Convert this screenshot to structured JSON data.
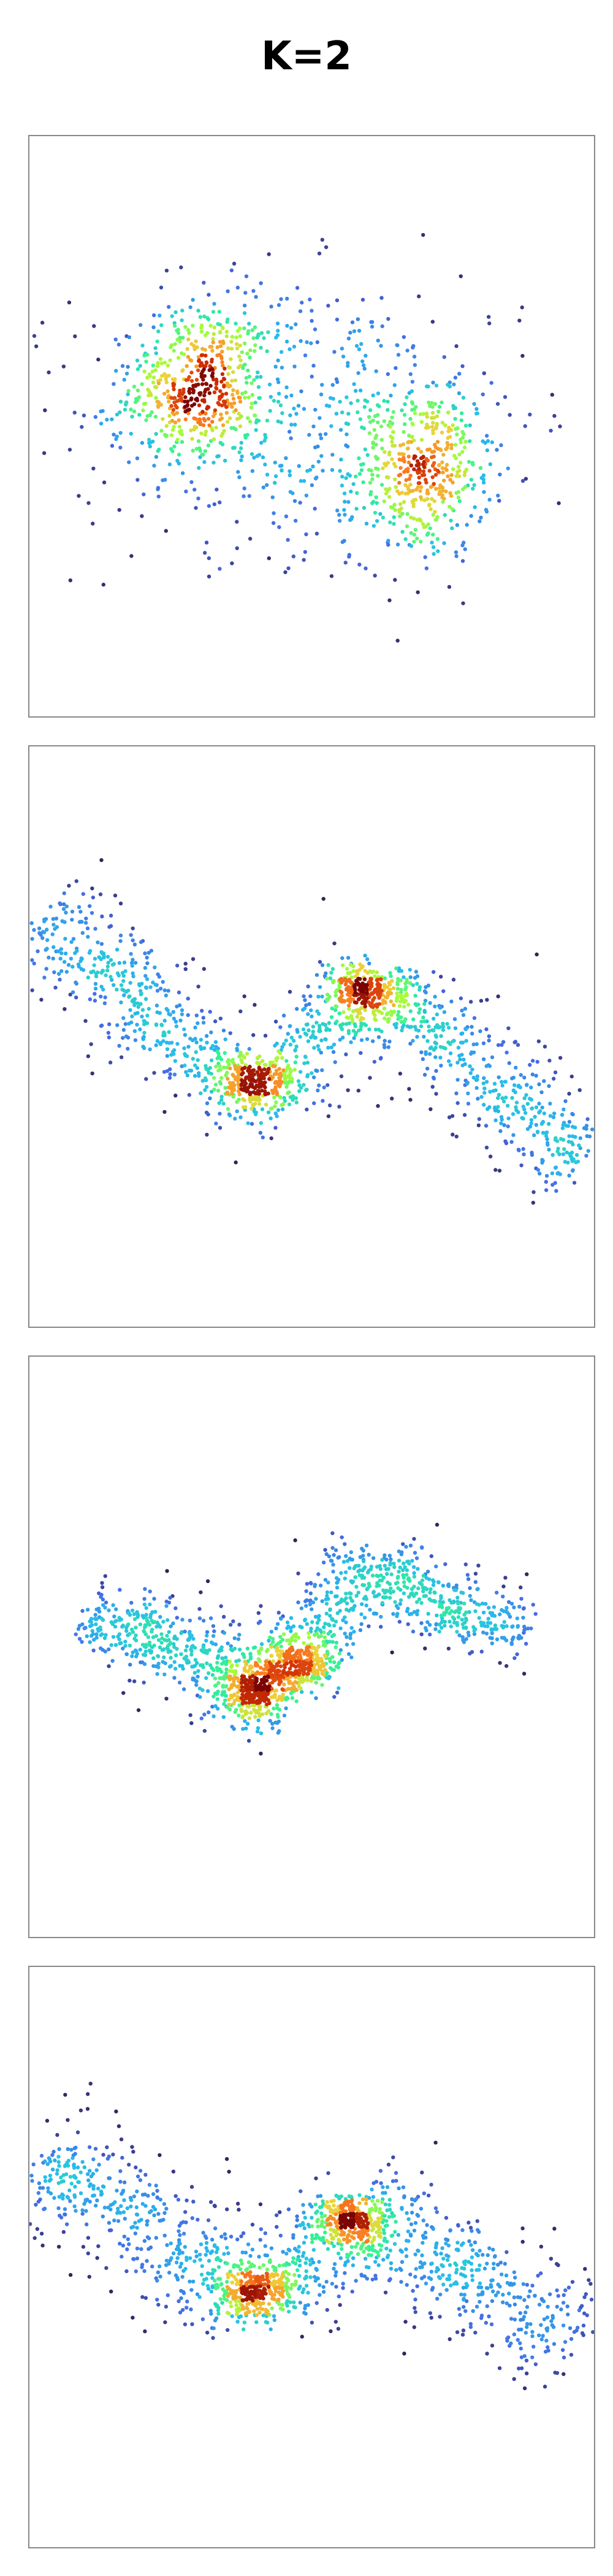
{
  "page": {
    "title": "K=2"
  },
  "colors": {
    "frame": "#888888",
    "colormap": "turbo",
    "background": "#ffffff"
  },
  "chart_data": [
    {
      "type": "scatter",
      "title": "",
      "density_colored": true,
      "xlim": [
        0,
        1
      ],
      "ylim": [
        0,
        1
      ],
      "grid": false,
      "clusters": [
        {
          "center": [
            0.3,
            0.57
          ],
          "spread": [
            0.06,
            0.07
          ],
          "tilt": 0.3,
          "weight": 0.34
        },
        {
          "center": [
            0.7,
            0.42
          ],
          "spread": [
            0.06,
            0.075
          ],
          "tilt": 0.2,
          "weight": 0.3
        },
        {
          "center": [
            0.48,
            0.52
          ],
          "spread": [
            0.2,
            0.12
          ],
          "tilt": 0.0,
          "weight": 0.36
        }
      ]
    },
    {
      "type": "scatter",
      "title": "",
      "density_colored": true,
      "xlim": [
        0,
        1
      ],
      "ylim": [
        0,
        1
      ],
      "grid": false,
      "curve": [
        [
          0.02,
          0.7
        ],
        [
          0.18,
          0.58
        ],
        [
          0.32,
          0.43
        ],
        [
          0.45,
          0.41
        ],
        [
          0.55,
          0.55
        ],
        [
          0.62,
          0.58
        ],
        [
          0.72,
          0.5
        ],
        [
          0.85,
          0.4
        ],
        [
          0.98,
          0.28
        ]
      ],
      "hotspots": [
        [
          0.4,
          0.42
        ],
        [
          0.6,
          0.58
        ]
      ],
      "width": 0.045
    },
    {
      "type": "scatter",
      "title": "",
      "density_colored": true,
      "xlim": [
        0,
        1
      ],
      "ylim": [
        0,
        1
      ],
      "grid": false,
      "curve": [
        [
          0.1,
          0.55
        ],
        [
          0.25,
          0.52
        ],
        [
          0.38,
          0.43
        ],
        [
          0.44,
          0.43
        ],
        [
          0.5,
          0.52
        ],
        [
          0.55,
          0.6
        ],
        [
          0.62,
          0.64
        ],
        [
          0.75,
          0.55
        ],
        [
          0.88,
          0.53
        ]
      ],
      "hotspots": [
        [
          0.4,
          0.42
        ],
        [
          0.48,
          0.47
        ]
      ],
      "width": 0.035
    },
    {
      "type": "scatter",
      "title": "",
      "density_colored": true,
      "xlim": [
        0,
        1
      ],
      "ylim": [
        0,
        1
      ],
      "grid": false,
      "curve": [
        [
          0.02,
          0.67
        ],
        [
          0.15,
          0.6
        ],
        [
          0.3,
          0.48
        ],
        [
          0.4,
          0.42
        ],
        [
          0.5,
          0.5
        ],
        [
          0.58,
          0.58
        ],
        [
          0.68,
          0.53
        ],
        [
          0.82,
          0.45
        ],
        [
          0.98,
          0.37
        ]
      ],
      "hotspots": [
        [
          0.4,
          0.44
        ],
        [
          0.57,
          0.56
        ]
      ],
      "width": 0.05
    }
  ]
}
